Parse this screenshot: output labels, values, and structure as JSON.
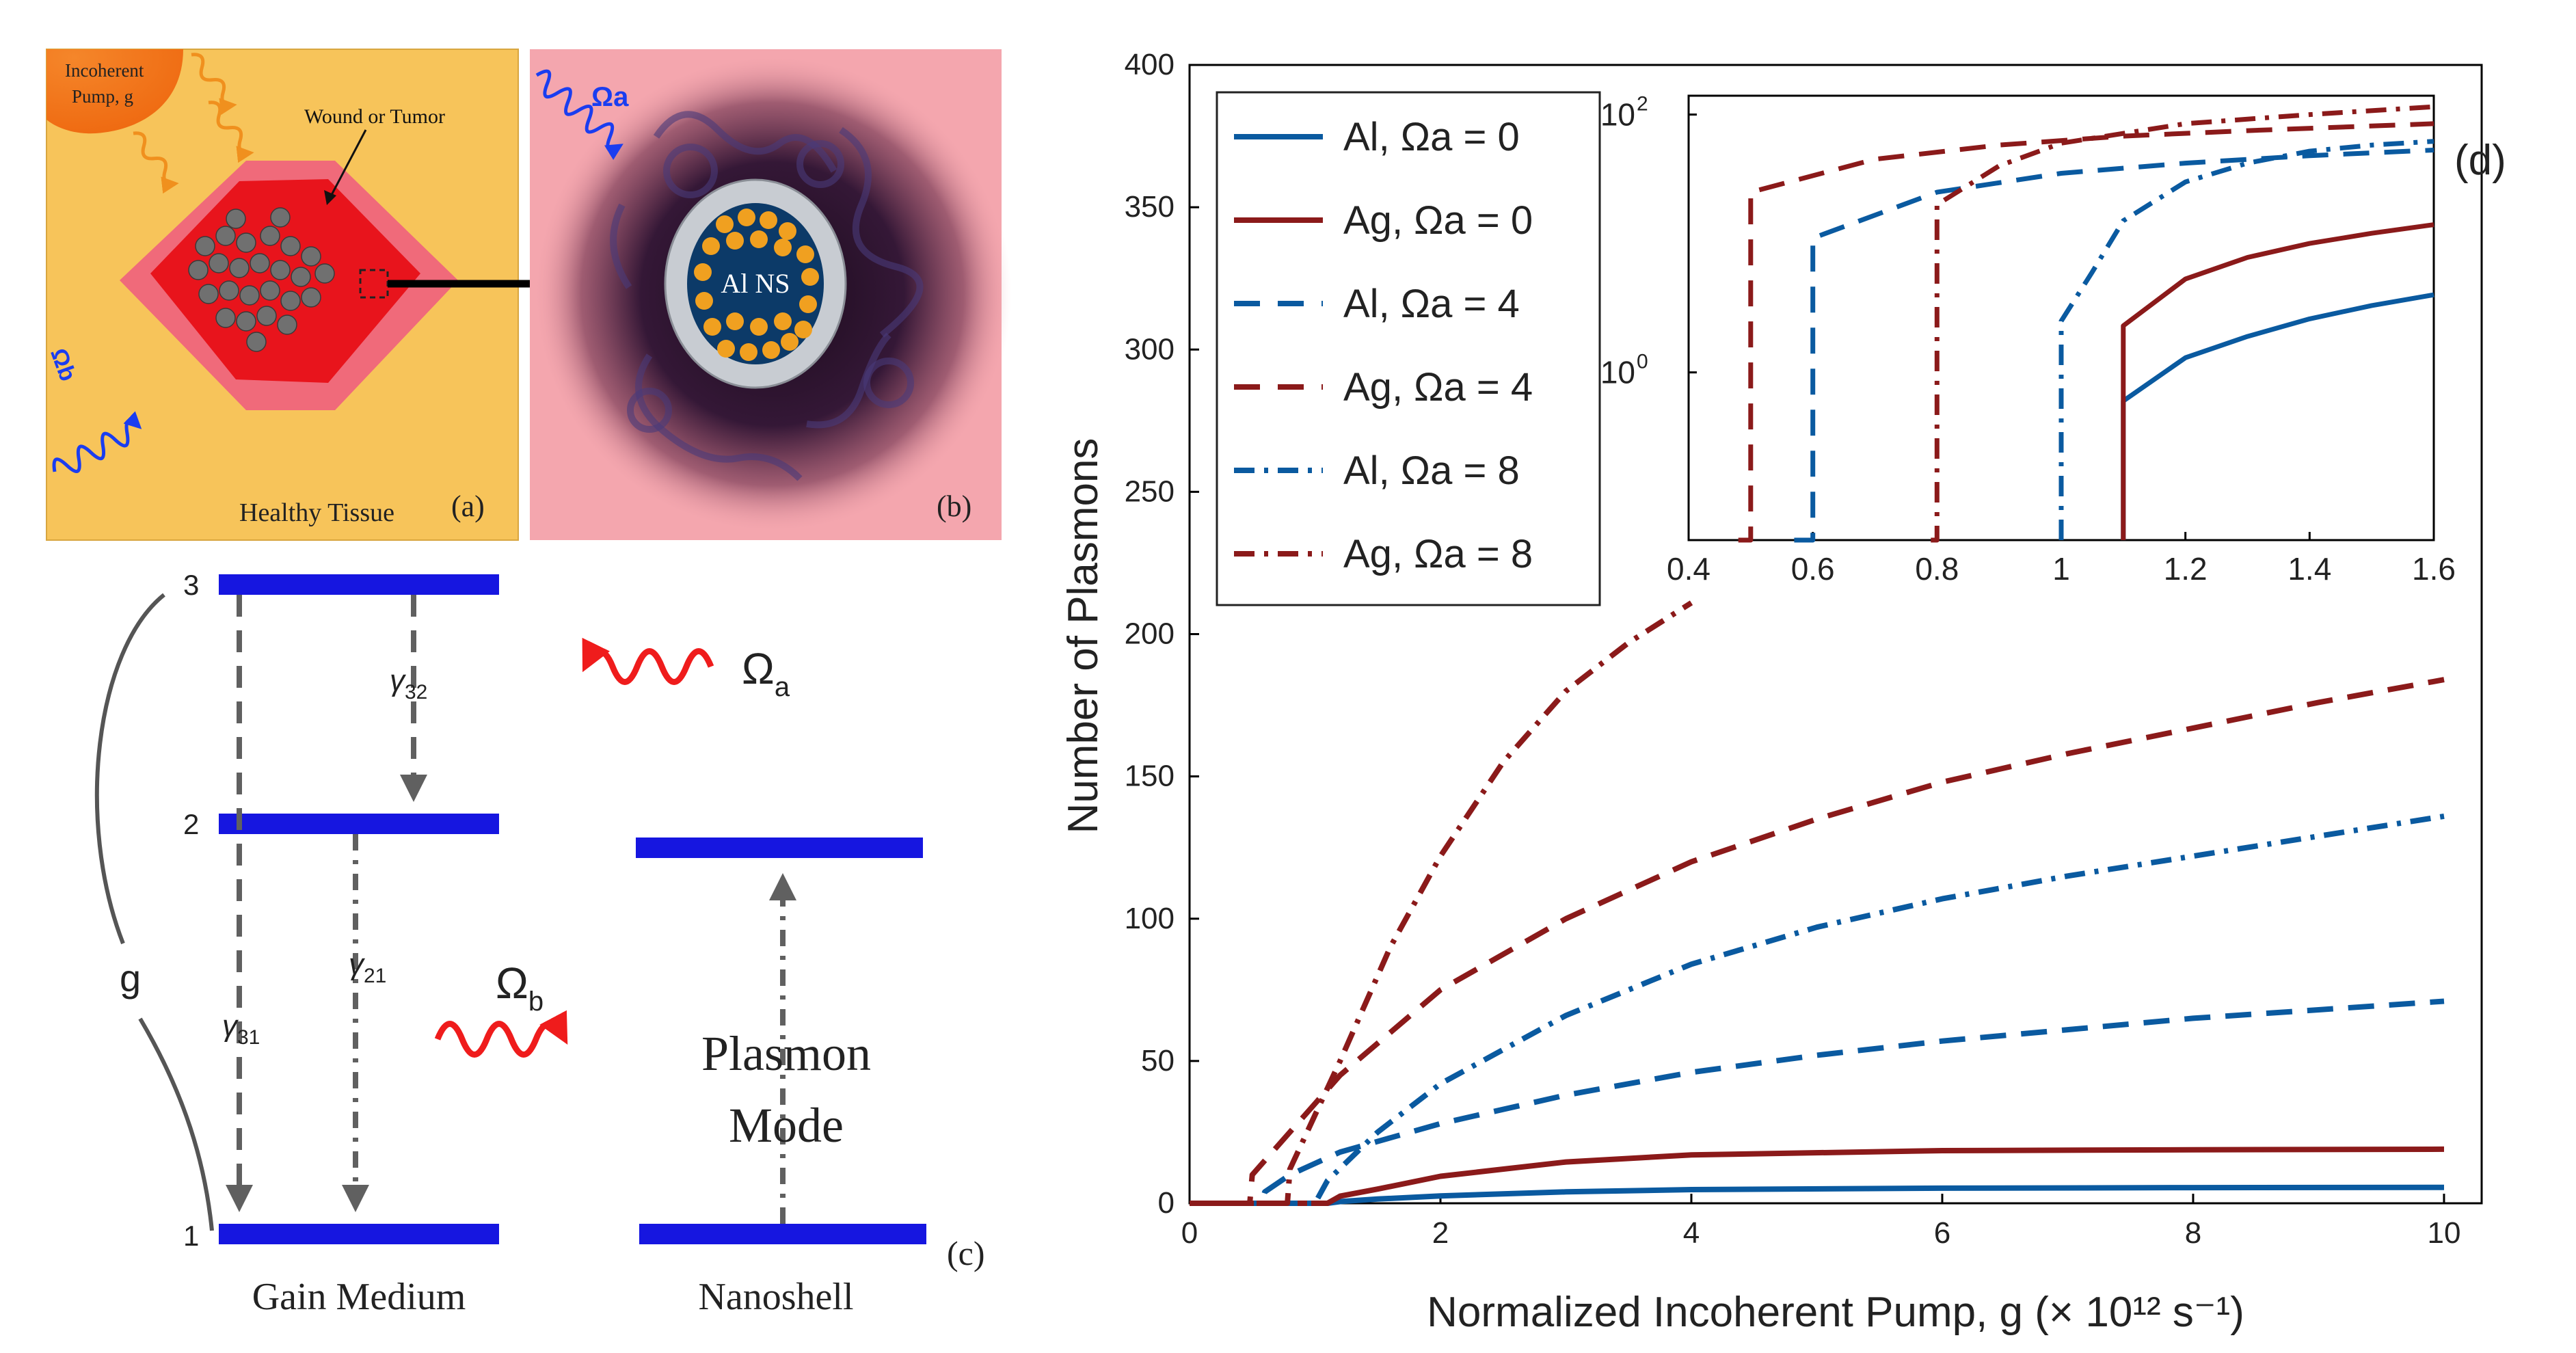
{
  "panel_a": {
    "pump_label_1": "Incoherent",
    "pump_label_2": "Pump, g",
    "wound_label": "Wound or Tumor",
    "omega_b_label": "Ωb",
    "tissue_label": "Healthy Tissue",
    "panel_letter": "(a)"
  },
  "panel_b": {
    "omega_a_label": "Ωa",
    "nanoshell_label": "Al NS",
    "panel_letter": "(b)"
  },
  "panel_c": {
    "level_3": "3",
    "level_2": "2",
    "level_1": "1",
    "gamma32": "γ32",
    "gamma21": "γ21",
    "gamma31": "γ31",
    "g_label": "g",
    "omega_a": "Ωa",
    "omega_b": "Ωb",
    "plasmon_line1": "Plasmon",
    "plasmon_line2": "Mode",
    "gain_medium": "Gain Medium",
    "nanoshell": "Nanoshell",
    "panel_letter": "(c)"
  },
  "colors": {
    "al": "#0a5aa0",
    "ag": "#8b1a1a",
    "level_bar": "#1616e0",
    "tissue": "#f7c45a",
    "bio_bg": "#f4a6ae",
    "wound_outer": "#f06a7a",
    "wound_inner": "#e8141c"
  },
  "chart_data": {
    "type": "line",
    "panel_letter": "(d)",
    "xlabel": "Normalized Incoherent Pump, g (× 10¹² s⁻¹)",
    "ylabel": "Number of Plasmons",
    "xlim": [
      0,
      10.3
    ],
    "ylim": [
      0,
      400
    ],
    "xticks": [
      "0",
      "2",
      "4",
      "6",
      "8",
      "10"
    ],
    "yticks": [
      "0",
      "50",
      "100",
      "150",
      "200",
      "250",
      "300",
      "350",
      "400"
    ],
    "legend": [
      {
        "name": "Al,  Ωa = 0",
        "metal": "Al",
        "omega": "0",
        "style": "solid"
      },
      {
        "name": "Ag, Ωa = 0",
        "metal": "Ag",
        "omega": "0",
        "style": "solid"
      },
      {
        "name": "Al, Ωa = 4",
        "metal": "Al",
        "omega": "4",
        "style": "dashed"
      },
      {
        "name": "Ag, Ωa = 4",
        "metal": "Ag",
        "omega": "4",
        "style": "dashed"
      },
      {
        "name": "Al, Ωa = 8",
        "metal": "Al",
        "omega": "8",
        "style": "dashdot"
      },
      {
        "name": "Ag, Ωa = 8",
        "metal": "Ag",
        "omega": "8",
        "style": "dashdot"
      }
    ],
    "series": [
      {
        "name": "Al, Ωa = 0",
        "metal": "Al",
        "style": "solid",
        "x": [
          0,
          1.1,
          1.2,
          1.5,
          2,
          3,
          4,
          6,
          8,
          10
        ],
        "y": [
          0,
          0,
          0.6,
          1.5,
          2.6,
          4,
          4.8,
          5.3,
          5.5,
          5.6
        ]
      },
      {
        "name": "Ag, Ωa = 0",
        "metal": "Ag",
        "style": "solid",
        "x": [
          0,
          1.1,
          1.2,
          1.5,
          2,
          3,
          4,
          6,
          8,
          10
        ],
        "y": [
          0,
          0,
          2.5,
          5,
          9.5,
          14.5,
          17,
          18.5,
          18.8,
          19
        ]
      },
      {
        "name": "Al, Ωa = 4",
        "metal": "Al",
        "style": "dashed",
        "x": [
          0,
          0.57,
          0.6,
          0.8,
          1.2,
          2,
          3,
          4,
          5,
          6,
          7,
          8,
          9,
          10
        ],
        "y": [
          0,
          0,
          4,
          10,
          18,
          28,
          38,
          46,
          52,
          57,
          61,
          65,
          68,
          71
        ]
      },
      {
        "name": "Ag, Ωa = 4",
        "metal": "Ag",
        "style": "dashed",
        "x": [
          0,
          0.48,
          0.5,
          0.8,
          1.2,
          2,
          3,
          4,
          5,
          6,
          7,
          8,
          9,
          10
        ],
        "y": [
          0,
          0,
          10,
          25,
          45,
          75,
          100,
          120,
          135,
          148,
          158,
          167,
          176,
          184
        ]
      },
      {
        "name": "Al, Ωa = 8",
        "metal": "Al",
        "style": "dashdot",
        "x": [
          0,
          1.0,
          1.1,
          1.5,
          2,
          3,
          4,
          5,
          6,
          7,
          8,
          9,
          10
        ],
        "y": [
          0,
          0,
          8,
          25,
          42,
          66,
          84,
          97,
          107,
          115,
          122,
          129,
          136
        ]
      },
      {
        "name": "Ag, Ωa = 8",
        "metal": "Ag",
        "style": "dashdot",
        "x": [
          0,
          0.78,
          0.8,
          1.2,
          1.6,
          2,
          2.5,
          3,
          3.5,
          4
        ],
        "y": [
          0,
          0,
          12,
          50,
          90,
          122,
          155,
          180,
          197,
          211
        ]
      }
    ],
    "inset": {
      "type": "line",
      "yscale": "log",
      "xlim": [
        0.4,
        1.6
      ],
      "ylim": [
        0.05,
        140
      ],
      "xticks": [
        "0.4",
        "0.6",
        "0.8",
        "1",
        "1.2",
        "1.4",
        "1.6"
      ],
      "yticks": [
        {
          "label": "10",
          "exp": "0",
          "value": 1
        },
        {
          "label": "10",
          "exp": "2",
          "value": 100
        }
      ],
      "series": [
        {
          "name": "Al, Ωa = 0",
          "metal": "Al",
          "style": "solid",
          "x": [
            1.1,
            1.1,
            1.2,
            1.3,
            1.4,
            1.5,
            1.6
          ],
          "y": [
            0.05,
            0.6,
            1.3,
            1.9,
            2.6,
            3.3,
            4.0
          ]
        },
        {
          "name": "Ag, Ωa = 0",
          "metal": "Ag",
          "style": "solid",
          "x": [
            1.1,
            1.1,
            1.2,
            1.3,
            1.4,
            1.5,
            1.6
          ],
          "y": [
            0.05,
            2.3,
            5.3,
            7.8,
            10,
            12,
            14
          ]
        },
        {
          "name": "Al, Ωa = 4",
          "metal": "Al",
          "style": "dashed",
          "x": [
            0.57,
            0.6,
            0.6,
            0.8,
            1.0,
            1.2,
            1.4,
            1.6
          ],
          "y": [
            0.05,
            0.05,
            11,
            25,
            35,
            42,
            48,
            53
          ]
        },
        {
          "name": "Ag, Ωa = 4",
          "metal": "Ag",
          "style": "dashed",
          "x": [
            0.48,
            0.5,
            0.5,
            0.7,
            0.9,
            1.1,
            1.3,
            1.6
          ],
          "y": [
            0.05,
            0.05,
            25,
            45,
            58,
            68,
            75,
            85
          ]
        },
        {
          "name": "Al, Ωa = 8",
          "metal": "Al",
          "style": "dashdot",
          "x": [
            1.0,
            1.0,
            1.05,
            1.1,
            1.2,
            1.3,
            1.4,
            1.5,
            1.6
          ],
          "y": [
            0.05,
            2.5,
            6,
            15,
            30,
            42,
            52,
            58,
            62
          ]
        },
        {
          "name": "Ag, Ωa = 8",
          "metal": "Ag",
          "style": "dashdot",
          "x": [
            0.79,
            0.8,
            0.8,
            0.9,
            1.0,
            1.2,
            1.4,
            1.6
          ],
          "y": [
            0.05,
            0.05,
            20,
            40,
            60,
            85,
            100,
            115
          ]
        }
      ]
    }
  }
}
